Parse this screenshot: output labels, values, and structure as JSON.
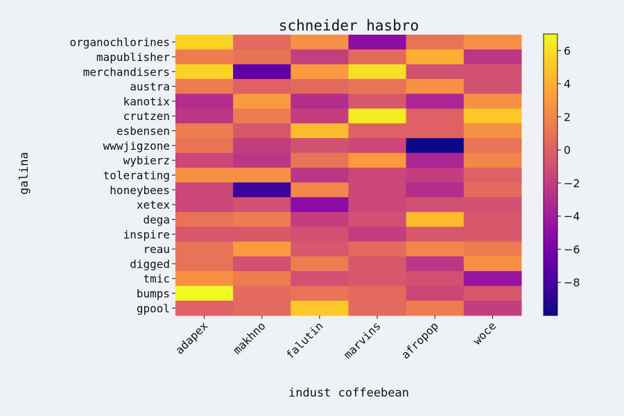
{
  "chart_data": {
    "type": "heatmap",
    "title": "schneider hasbro",
    "xlabel": "indust coffeebean",
    "ylabel": "galina",
    "columns": [
      "adapex",
      "makhno",
      "falutin",
      "marvins",
      "afropop",
      "woce"
    ],
    "rows": [
      "organochlorines",
      "mapublisher",
      "merchandisers",
      "austra",
      "kanotix",
      "crutzen",
      "esbensen",
      "wwwjigzone",
      "wybierz",
      "tolerating",
      "honeybees",
      "xetex",
      "dega",
      "inspire",
      "reau",
      "digged",
      "tmic",
      "bumps",
      "gpool"
    ],
    "values": [
      [
        5.5,
        0.5,
        2.5,
        -5.0,
        1.0,
        2.5
      ],
      [
        1.5,
        1.0,
        -2.0,
        0.5,
        4.0,
        -2.5
      ],
      [
        5.5,
        -7.0,
        3.0,
        6.0,
        -1.0,
        -1.0
      ],
      [
        1.5,
        0.0,
        0.5,
        1.0,
        2.5,
        -1.0
      ],
      [
        -3.0,
        3.0,
        -3.0,
        -0.5,
        -3.5,
        2.5
      ],
      [
        -2.5,
        1.5,
        -2.0,
        6.5,
        0.0,
        5.0
      ],
      [
        1.5,
        -0.5,
        4.5,
        0.0,
        0.0,
        2.5
      ],
      [
        1.0,
        -2.0,
        -1.0,
        -1.5,
        -10.0,
        1.0
      ],
      [
        -1.5,
        -2.5,
        1.0,
        3.0,
        -3.5,
        2.0
      ],
      [
        2.5,
        2.5,
        -2.5,
        -1.5,
        -2.0,
        0.0
      ],
      [
        -1.5,
        -8.5,
        2.0,
        -1.5,
        -3.0,
        0.5
      ],
      [
        -1.5,
        -1.0,
        -5.0,
        -1.5,
        -1.0,
        -1.0
      ],
      [
        1.0,
        1.5,
        -2.0,
        -1.0,
        4.5,
        -0.5
      ],
      [
        -0.5,
        -0.5,
        -1.0,
        -2.0,
        -0.5,
        -0.5
      ],
      [
        1.0,
        3.0,
        -0.5,
        0.5,
        2.0,
        1.5
      ],
      [
        1.0,
        -1.0,
        1.5,
        -0.5,
        -2.5,
        2.5
      ],
      [
        2.5,
        1.5,
        -1.0,
        -0.5,
        -1.0,
        -4.5
      ],
      [
        7.0,
        0.5,
        1.0,
        0.5,
        -1.5,
        -0.5
      ],
      [
        0.0,
        0.5,
        5.0,
        0.5,
        1.5,
        -2.0
      ]
    ],
    "vmin": -10.0,
    "vmax": 7.0,
    "colormap": "plasma",
    "colorbar_ticks": [
      "6",
      "4",
      "2",
      "0",
      "−2",
      "−4",
      "−6",
      "−8"
    ],
    "colorbar_tick_values": [
      6,
      4,
      2,
      0,
      -2,
      -4,
      -6,
      -8
    ],
    "grid": false,
    "colorbar_placement": "right"
  }
}
